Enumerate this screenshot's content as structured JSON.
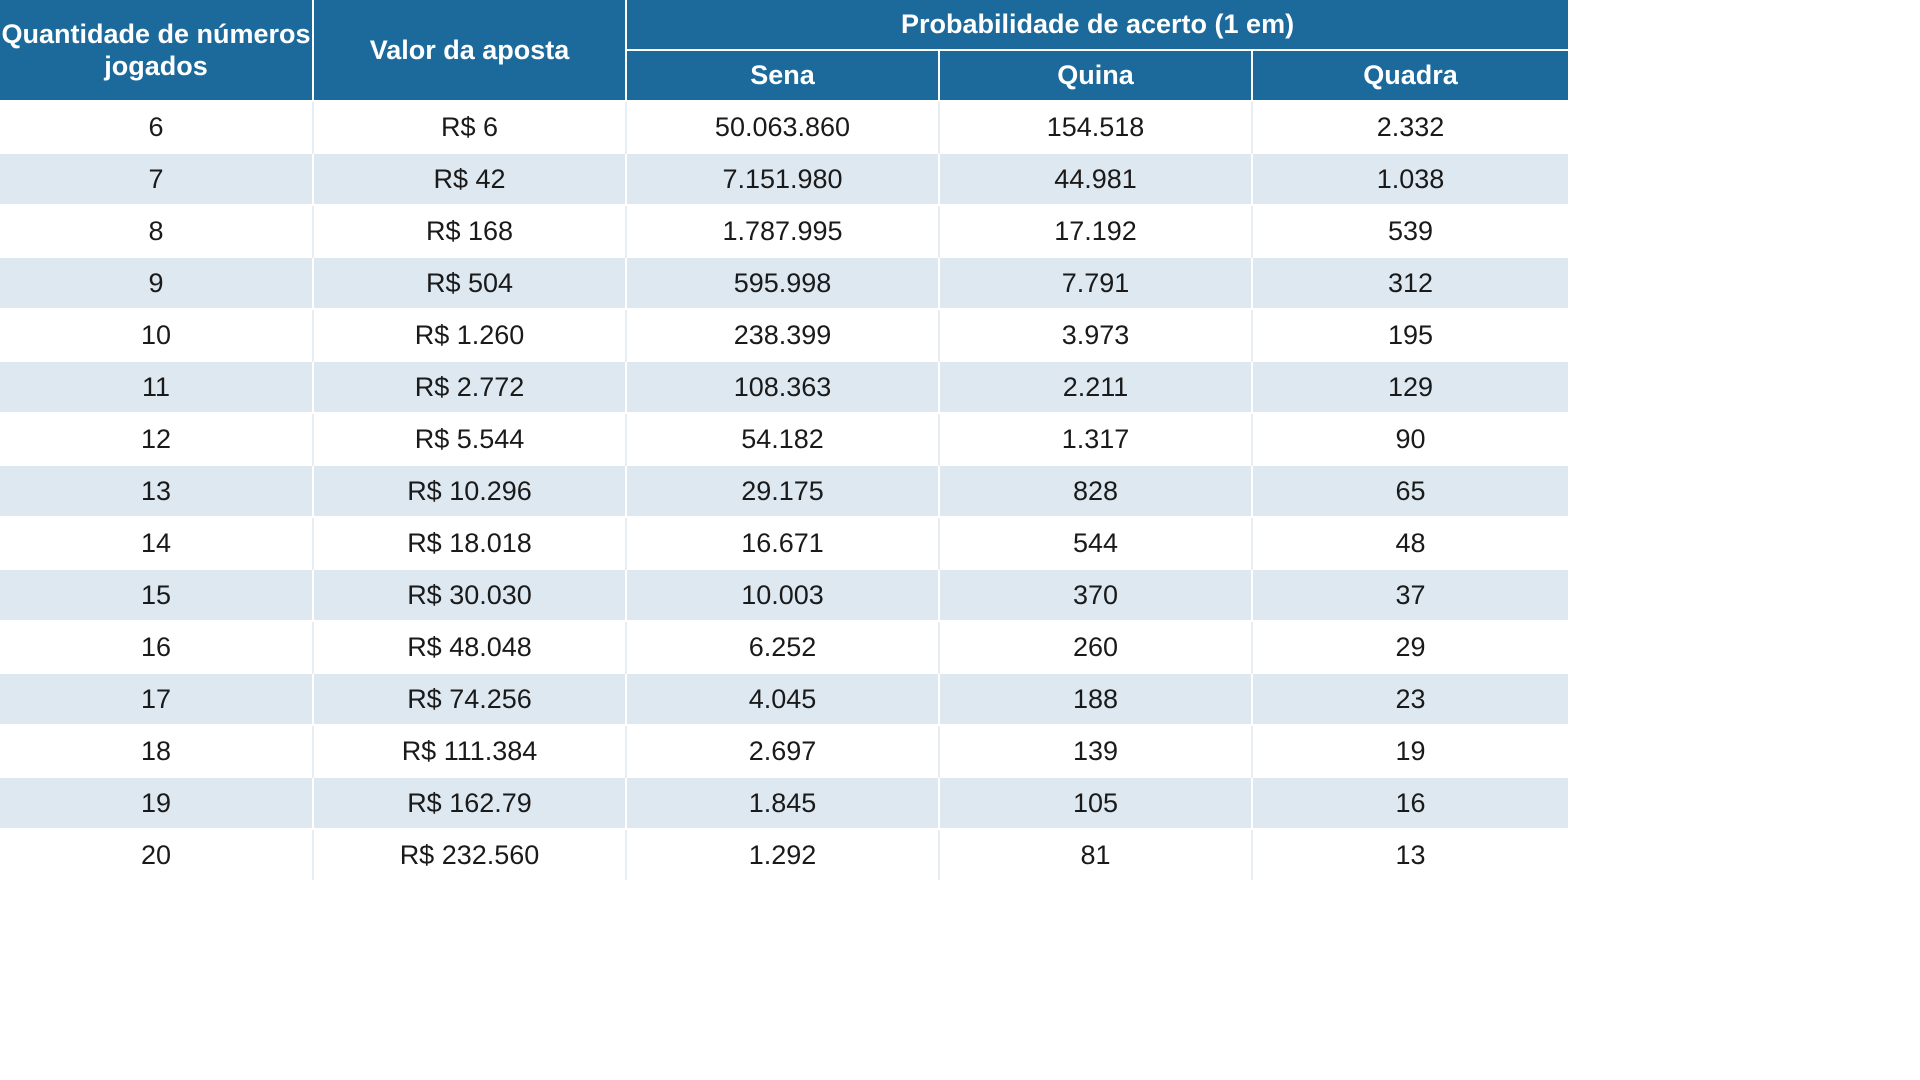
{
  "header": {
    "quantity": "Quantidade de números jogados",
    "bet_value": "Valor da aposta",
    "probability_group": "Probabilidade de acerto (1 em)",
    "sena": "Sena",
    "quina": "Quina",
    "quadra": "Quadra"
  },
  "rows": [
    {
      "qty": "6",
      "value": "R$ 6",
      "sena": "50.063.860",
      "quina": "154.518",
      "quadra": "2.332"
    },
    {
      "qty": "7",
      "value": "R$ 42",
      "sena": "7.151.980",
      "quina": "44.981",
      "quadra": "1.038"
    },
    {
      "qty": "8",
      "value": "R$ 168",
      "sena": "1.787.995",
      "quina": "17.192",
      "quadra": "539"
    },
    {
      "qty": "9",
      "value": "R$ 504",
      "sena": "595.998",
      "quina": "7.791",
      "quadra": "312"
    },
    {
      "qty": "10",
      "value": "R$ 1.260",
      "sena": "238.399",
      "quina": "3.973",
      "quadra": "195"
    },
    {
      "qty": "11",
      "value": "R$ 2.772",
      "sena": "108.363",
      "quina": "2.211",
      "quadra": "129"
    },
    {
      "qty": "12",
      "value": "R$ 5.544",
      "sena": "54.182",
      "quina": "1.317",
      "quadra": "90"
    },
    {
      "qty": "13",
      "value": "R$ 10.296",
      "sena": "29.175",
      "quina": "828",
      "quadra": "65"
    },
    {
      "qty": "14",
      "value": "R$ 18.018",
      "sena": "16.671",
      "quina": "544",
      "quadra": "48"
    },
    {
      "qty": "15",
      "value": "R$ 30.030",
      "sena": "10.003",
      "quina": "370",
      "quadra": "37"
    },
    {
      "qty": "16",
      "value": "R$ 48.048",
      "sena": "6.252",
      "quina": "260",
      "quadra": "29"
    },
    {
      "qty": "17",
      "value": "R$ 74.256",
      "sena": "4.045",
      "quina": "188",
      "quadra": "23"
    },
    {
      "qty": "18",
      "value": "R$ 111.384",
      "sena": "2.697",
      "quina": "139",
      "quadra": "19"
    },
    {
      "qty": "19",
      "value": "R$ 162.79",
      "sena": "1.845",
      "quina": "105",
      "quadra": "16"
    },
    {
      "qty": "20",
      "value": "R$ 232.560",
      "sena": "1.292",
      "quina": "81",
      "quadra": "13"
    }
  ],
  "colors": {
    "header_bg": "#1b6a9b",
    "header_text": "#ffffff",
    "stripe": "#dde8f0",
    "row_bg": "#ffffff"
  }
}
